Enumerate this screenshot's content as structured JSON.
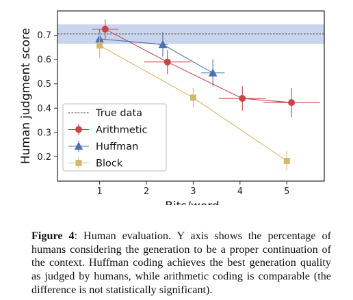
{
  "chart_data": {
    "type": "line",
    "xlabel": "Bits/word",
    "ylabel": "Human judgment score",
    "xlim": [
      0.1,
      5.8
    ],
    "ylim": [
      0.1,
      0.8
    ],
    "xticks": [
      1,
      2,
      3,
      4,
      5
    ],
    "yticks": [
      0.2,
      0.3,
      0.4,
      0.5,
      0.6,
      0.7
    ],
    "grid": false,
    "legend_position": "lower-left",
    "true_data": {
      "name": "True data",
      "value": 0.705,
      "band": [
        0.665,
        0.745
      ],
      "color": "#333333",
      "band_color": "#b7c7e6"
    },
    "series": [
      {
        "name": "Arithmetic",
        "color": "#c8454a",
        "marker": "circle",
        "points": [
          {
            "x": 1.12,
            "y": 0.725,
            "xerr": 0.28,
            "yerr": 0.04
          },
          {
            "x": 2.45,
            "y": 0.59,
            "xerr": 0.5,
            "yerr": 0.05
          },
          {
            "x": 4.05,
            "y": 0.44,
            "xerr": 0.5,
            "yerr": 0.05
          },
          {
            "x": 5.1,
            "y": 0.423,
            "xerr": 0.6,
            "yerr": 0.06
          }
        ]
      },
      {
        "name": "Huffman",
        "color": "#4c72b0",
        "marker": "triangle",
        "points": [
          {
            "x": 1.0,
            "y": 0.685,
            "xerr": 0.05,
            "yerr": 0.04
          },
          {
            "x": 2.35,
            "y": 0.662,
            "xerr": 0.1,
            "yerr": 0.05
          },
          {
            "x": 3.42,
            "y": 0.545,
            "xerr": 0.25,
            "yerr": 0.055
          }
        ]
      },
      {
        "name": "Block",
        "color": "#d4b86a",
        "marker": "square",
        "points": [
          {
            "x": 1.0,
            "y": 0.658,
            "xerr": 0.0,
            "yerr": 0.05
          },
          {
            "x": 3.0,
            "y": 0.443,
            "xerr": 0.0,
            "yerr": 0.04
          },
          {
            "x": 5.0,
            "y": 0.183,
            "xerr": 0.0,
            "yerr": 0.04
          }
        ]
      }
    ]
  },
  "caption": {
    "label": "Figure 4",
    "text": ": Human evaluation. Y axis shows the percentage of humans considering the generation to be a proper continuation of the context. Huffman coding achieves the best generation quality as judged by humans, while arithmetic coding is comparable (the difference is not statistically significant)."
  }
}
